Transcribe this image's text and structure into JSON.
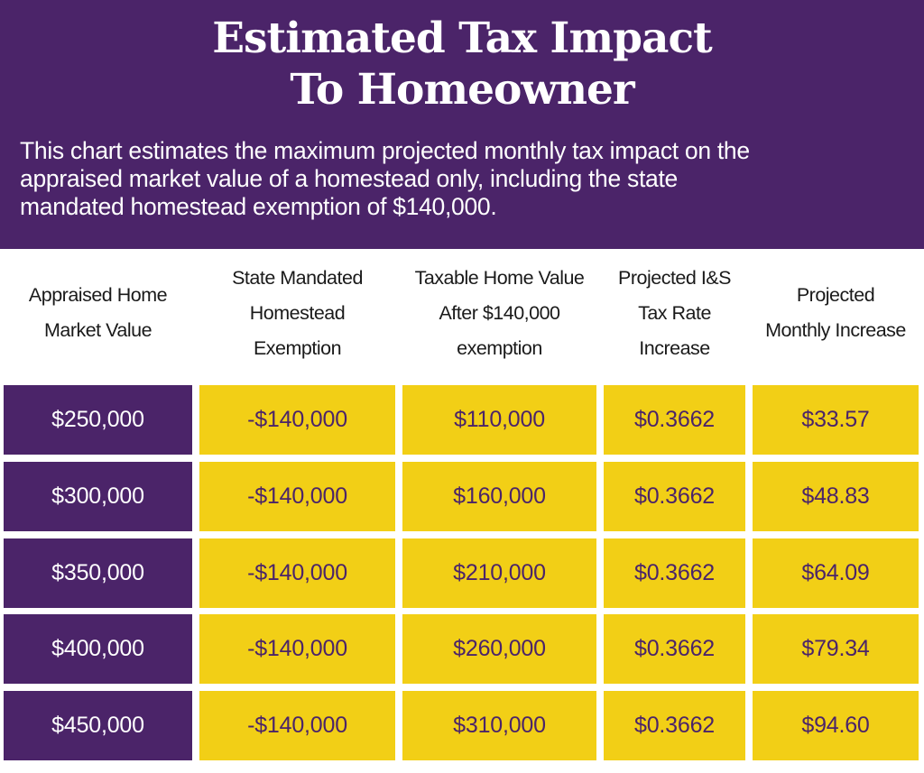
{
  "header": {
    "title_line1": "Estimated Tax Impact",
    "title_line2": "To Homeowner",
    "subtitle_line1": "This chart estimates the maximum projected monthly tax impact on the",
    "subtitle_line2": "appraised market value of a homestead only, including the state",
    "subtitle_line3": "mandated homestead exemption of $140,000."
  },
  "colors": {
    "purple": "#4b2469",
    "yellow": "#f2cf16",
    "white": "#ffffff"
  },
  "chart_data": {
    "type": "table",
    "title": "Estimated Tax Impact To Homeowner",
    "columns": [
      {
        "key": "appraised",
        "label_lines": [
          "Appraised Home",
          "Market Value"
        ]
      },
      {
        "key": "exemption",
        "label_lines": [
          "State Mandated",
          "Homestead",
          "Exemption"
        ]
      },
      {
        "key": "taxable",
        "label_lines": [
          "Taxable Home Value",
          "After $140,000",
          "exemption"
        ]
      },
      {
        "key": "rate",
        "label_lines": [
          "Projected I&S",
          "Tax Rate",
          "Increase"
        ]
      },
      {
        "key": "monthly",
        "label_lines": [
          "Projected",
          "Monthly Increase"
        ]
      }
    ],
    "rows": [
      {
        "appraised": "$250,000",
        "exemption": "-$140,000",
        "taxable": "$110,000",
        "rate": "$0.3662",
        "monthly": "$33.57"
      },
      {
        "appraised": "$300,000",
        "exemption": "-$140,000",
        "taxable": "$160,000",
        "rate": "$0.3662",
        "monthly": "$48.83"
      },
      {
        "appraised": "$350,000",
        "exemption": "-$140,000",
        "taxable": "$210,000",
        "rate": "$0.3662",
        "monthly": "$64.09"
      },
      {
        "appraised": "$400,000",
        "exemption": "-$140,000",
        "taxable": "$260,000",
        "rate": "$0.3662",
        "monthly": "$79.34"
      },
      {
        "appraised": "$450,000",
        "exemption": "-$140,000",
        "taxable": "$310,000",
        "rate": "$0.3662",
        "monthly": "$94.60"
      }
    ],
    "numeric": {
      "appraised_value": [
        250000,
        300000,
        350000,
        400000,
        450000
      ],
      "homestead_exemption": [
        -140000,
        -140000,
        -140000,
        -140000,
        -140000
      ],
      "taxable_value": [
        110000,
        160000,
        210000,
        260000,
        310000
      ],
      "is_tax_rate_increase": [
        0.3662,
        0.3662,
        0.3662,
        0.3662,
        0.3662
      ],
      "monthly_increase": [
        33.57,
        48.83,
        64.09,
        79.34,
        94.6
      ]
    }
  }
}
